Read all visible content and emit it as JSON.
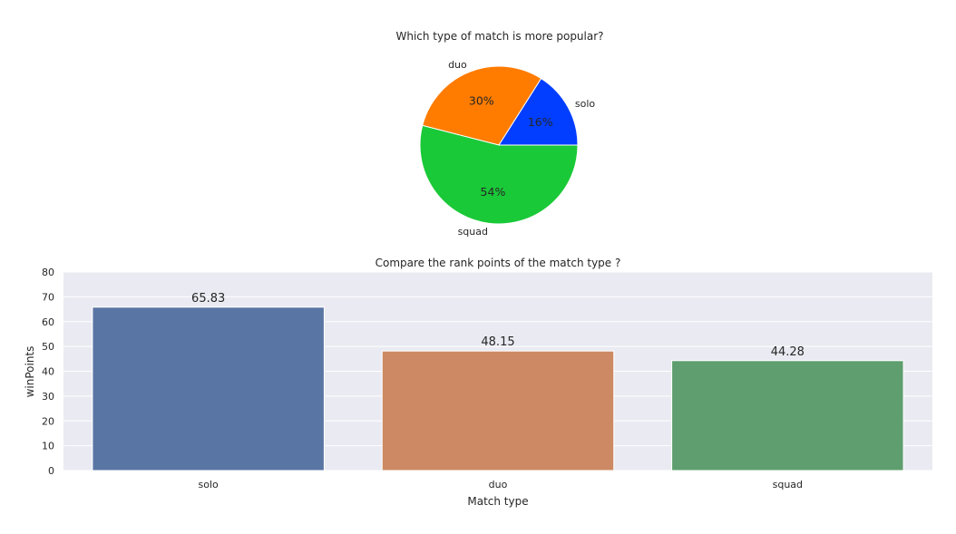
{
  "chart_data": [
    {
      "type": "pie",
      "title": "Which type of match is more popular?",
      "labels": [
        "solo",
        "duo",
        "squad"
      ],
      "values": [
        16,
        30,
        54
      ],
      "percent_labels": [
        "16%",
        "30%",
        "54%"
      ],
      "colors": [
        "#023eff",
        "#ff7c00",
        "#1ac938"
      ]
    },
    {
      "type": "bar",
      "title": "Compare the rank points of the match type ?",
      "categories": [
        "solo",
        "duo",
        "squad"
      ],
      "values": [
        65.83,
        48.15,
        44.28
      ],
      "value_labels": [
        "65.83",
        "48.15",
        "44.28"
      ],
      "colors": [
        "#5975a4",
        "#cc8963",
        "#5f9e6e"
      ],
      "xlabel": "Match type",
      "ylabel": "winPoints",
      "ylim": [
        0,
        80
      ],
      "yticks": [
        0,
        10,
        20,
        30,
        40,
        50,
        60,
        70,
        80
      ],
      "ytick_labels": [
        "0",
        "10",
        "20",
        "30",
        "40",
        "50",
        "60",
        "70",
        "80"
      ],
      "grid": true,
      "background": "#eaeaf2"
    }
  ]
}
